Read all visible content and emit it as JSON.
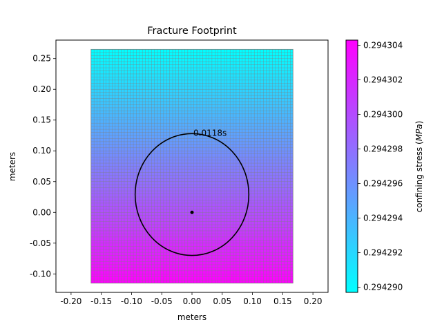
{
  "chart_data": {
    "type": "heatmap",
    "title": "Fracture Footprint",
    "xlabel": "meters",
    "ylabel": "meters",
    "xlim": [
      -0.225,
      0.225
    ],
    "ylim": [
      -0.13,
      0.28
    ],
    "x_ticks": [
      "-0.20",
      "-0.15",
      "-0.10",
      "-0.05",
      "0.00",
      "0.05",
      "0.10",
      "0.15",
      "0.20"
    ],
    "x_tick_values": [
      -0.2,
      -0.15,
      -0.1,
      -0.05,
      0.0,
      0.05,
      0.1,
      0.15,
      0.2
    ],
    "y_ticks": [
      "-0.10",
      "-0.05",
      "0.00",
      "0.05",
      "0.10",
      "0.15",
      "0.20",
      "0.25"
    ],
    "y_tick_values": [
      -0.1,
      -0.05,
      0.0,
      0.05,
      0.1,
      0.15,
      0.2,
      0.25
    ],
    "mesh": {
      "x_range": [
        -0.167,
        0.167
      ],
      "y_range": [
        -0.115,
        0.265
      ],
      "cell_size": 0.005
    },
    "colorbar": {
      "label": "confining stress ($MPa$)",
      "range": [
        0.2942897,
        0.2943043
      ],
      "ticks": [
        "0.294290",
        "0.294292",
        "0.294294",
        "0.294296",
        "0.294298",
        "0.294300",
        "0.294302",
        "0.294304"
      ],
      "tick_values": [
        0.29429,
        0.294292,
        0.294294,
        0.294296,
        0.294298,
        0.2943,
        0.294302,
        0.294304
      ],
      "colormap": "cool",
      "color_low": "#00ffff",
      "color_high": "#ff00ff"
    },
    "stress_along_y": {
      "y_at_min": 0.265,
      "y_at_max": -0.115
    },
    "fracture_front": {
      "label": "0.0118s",
      "center": [
        0.0,
        0.029
      ],
      "semi_axes": [
        0.094,
        0.099
      ],
      "color": "#000000"
    },
    "injection_point": {
      "x": 0.0,
      "y": 0.0
    }
  }
}
